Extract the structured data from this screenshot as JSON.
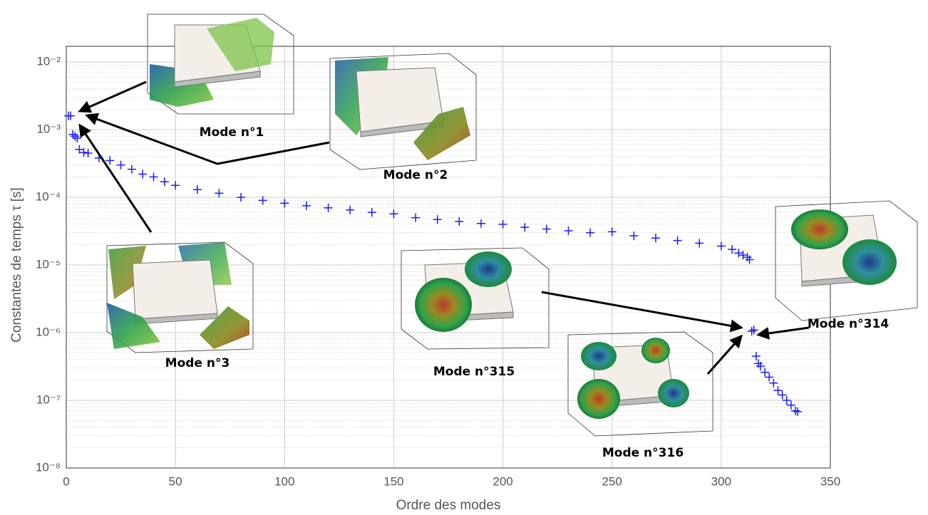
{
  "chart_data": {
    "type": "scatter",
    "xlabel": "Ordre des modes",
    "ylabel": "Constantes de temps τ [s]",
    "xlim": [
      0,
      350
    ],
    "xticks": [
      0,
      50,
      100,
      150,
      200,
      250,
      300,
      350
    ],
    "ylim": [
      1e-08,
      0.01
    ],
    "yticks": [
      {
        "value": 1e-08,
        "label": "10⁻⁸"
      },
      {
        "value": 1e-07,
        "label": "10⁻⁷"
      },
      {
        "value": 1e-06,
        "label": "10⁻⁶"
      },
      {
        "value": 1e-05,
        "label": "10⁻⁵"
      },
      {
        "value": 0.0001,
        "label": "10⁻⁴"
      },
      {
        "value": 0.001,
        "label": "10⁻³"
      },
      {
        "value": 0.01,
        "label": "10⁻²"
      }
    ],
    "log_y": true,
    "grid": true,
    "minor_grid": true,
    "series": [
      {
        "color": "#1a1aff",
        "x": [
          1,
          2,
          3,
          4,
          5,
          6,
          8,
          10,
          15,
          20,
          25,
          30,
          35,
          40,
          45,
          50,
          60,
          70,
          80,
          90,
          100,
          110,
          120,
          130,
          140,
          150,
          160,
          170,
          180,
          190,
          200,
          210,
          220,
          230,
          240,
          250,
          260,
          270,
          280,
          290,
          300,
          305,
          308,
          310,
          312,
          313,
          314,
          315,
          316,
          317,
          318,
          320,
          322,
          324,
          326,
          328,
          330,
          332,
          334,
          335
        ],
        "values": [
          0.0016,
          0.0016,
          0.00085,
          0.0008,
          0.00075,
          0.00051,
          0.00046,
          0.00045,
          0.00038,
          0.00035,
          0.0003,
          0.00026,
          0.00022,
          0.0002,
          0.00017,
          0.00015,
          0.00013,
          0.000115,
          0.0001,
          9e-05,
          8.2e-05,
          7.5e-05,
          7e-05,
          6.5e-05,
          6e-05,
          5.7e-05,
          5e-05,
          4.7e-05,
          4.4e-05,
          4.1e-05,
          4e-05,
          3.6e-05,
          3.4e-05,
          3.2e-05,
          3e-05,
          3.1e-05,
          2.7e-05,
          2.5e-05,
          2.3e-05,
          2.1e-05,
          1.9e-05,
          1.7e-05,
          1.5e-05,
          1.4e-05,
          1.3e-05,
          1.2e-05,
          1.05e-06,
          1.1e-06,
          4.5e-07,
          3.5e-07,
          3.2e-07,
          2.6e-07,
          2.2e-07,
          1.8e-07,
          1.4e-07,
          1.2e-07,
          1e-07,
          8.5e-08,
          7e-08,
          6.8e-08
        ]
      }
    ],
    "annotations": [
      {
        "text": "Mode n°1"
      },
      {
        "text": "Mode n°2"
      },
      {
        "text": "Mode n°3"
      },
      {
        "text": "Mode n°315"
      },
      {
        "text": "Mode n°316"
      },
      {
        "text": "Mode n°314"
      }
    ]
  }
}
